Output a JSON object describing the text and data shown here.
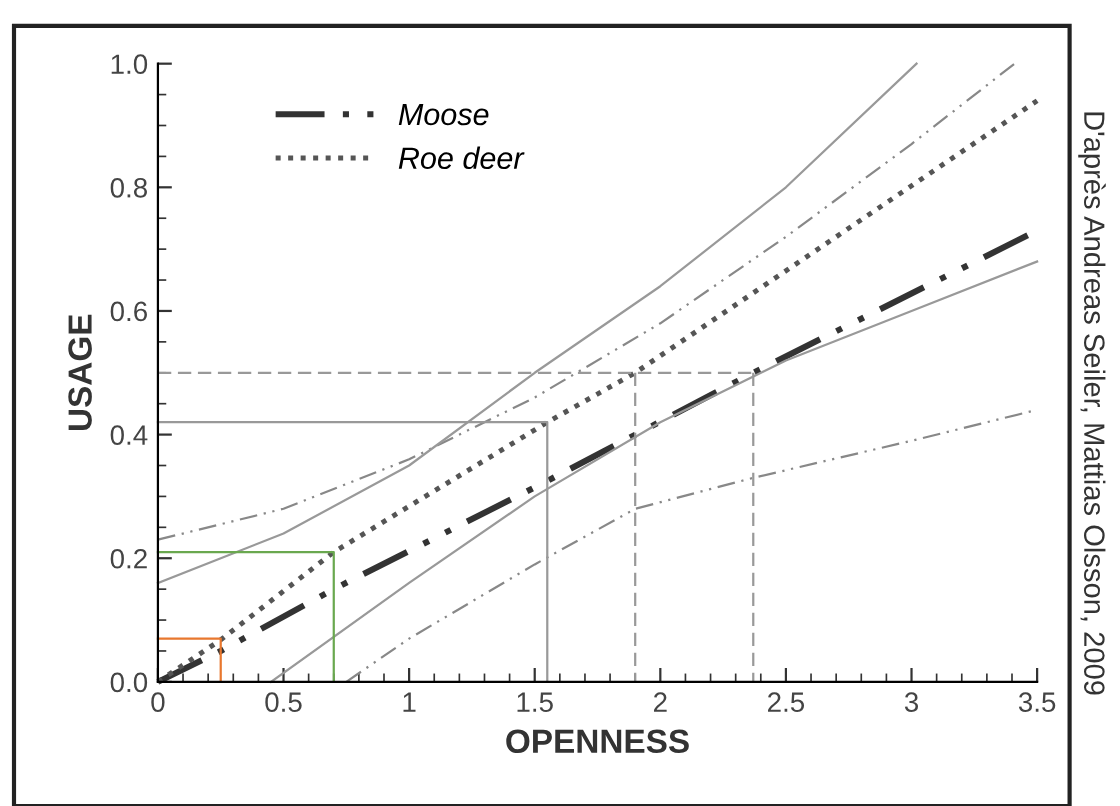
{
  "chart_data": {
    "type": "line",
    "xlabel": "OPENNESS",
    "ylabel": "USAGE",
    "xlim": [
      0,
      3.5
    ],
    "ylim": [
      0,
      1.0
    ],
    "xticks": [
      0,
      0.5,
      1,
      1.5,
      2,
      2.5,
      3,
      3.5
    ],
    "yticks": [
      {
        "value": 0,
        "label": "0.0"
      },
      {
        "value": 0.2,
        "label": "0.2"
      },
      {
        "value": 0.4,
        "label": "0.4"
      },
      {
        "value": 0.6,
        "label": "0.6"
      },
      {
        "value": 0.8,
        "label": "0.8"
      },
      {
        "value": 1.0,
        "label": "1.0"
      }
    ],
    "grid": false,
    "legend": "top left",
    "marker": "none",
    "series": [
      {
        "name": "Moose",
        "color": "#333333",
        "line_style": "dashdot",
        "x": [
          0,
          0.25,
          0.7,
          1.55,
          2.37,
          3.5
        ],
        "values": [
          0,
          0.05,
          0.15,
          0.325,
          0.5,
          0.73
        ]
      },
      {
        "name": "Roe deer",
        "color": "#555555",
        "line_style": "dotted",
        "x": [
          0,
          0.25,
          0.7,
          1.55,
          1.9,
          3.5
        ],
        "values": [
          0,
          0.068,
          0.21,
          0.42,
          0.5,
          0.94
        ]
      },
      {
        "color": "#888888",
        "line_style": "dashdot",
        "x": [
          0,
          0.5,
          1.0,
          1.5,
          2.0,
          2.5,
          3.0,
          3.41
        ],
        "values": [
          0.23,
          0.28,
          0.36,
          0.46,
          0.58,
          0.72,
          0.87,
          1.0
        ]
      },
      {
        "color": "#888888",
        "line_style": "dashdot",
        "x": [
          0.75,
          1.0,
          1.5,
          1.9,
          2.37,
          3.0,
          3.5
        ],
        "values": [
          0,
          0.07,
          0.19,
          0.28,
          0.33,
          0.39,
          0.44
        ]
      },
      {
        "color": "#999999",
        "line_style": "solid",
        "x": [
          0,
          0.5,
          1.0,
          1.5,
          2.0,
          2.5,
          3.02
        ],
        "values": [
          0.16,
          0.24,
          0.35,
          0.5,
          0.64,
          0.8,
          1.0
        ]
      },
      {
        "color": "#999999",
        "line_style": "solid",
        "x": [
          0.45,
          1.0,
          1.5,
          2.0,
          2.5,
          3.0,
          3.5
        ],
        "values": [
          0,
          0.16,
          0.3,
          0.42,
          0.52,
          0.6,
          0.68
        ]
      },
      {
        "color": "#e8772e",
        "line_style": "solid",
        "x": [
          0,
          0.25,
          0.25
        ],
        "values": [
          0.07,
          0.07,
          0
        ]
      },
      {
        "color": "#6aa84f",
        "line_style": "solid",
        "x": [
          0,
          0.7,
          0.7
        ],
        "values": [
          0.21,
          0.21,
          0
        ]
      },
      {
        "color": "#999999",
        "line_style": "solid",
        "x": [
          0,
          1.55,
          1.55
        ],
        "values": [
          0.42,
          0.42,
          0
        ]
      },
      {
        "color": "#999999",
        "line_style": "dashed",
        "x": [
          0,
          2.37
        ],
        "values": [
          0.5,
          0.5
        ]
      },
      {
        "color": "#999999",
        "line_style": "dashed",
        "x": [
          1.9,
          1.9
        ],
        "values": [
          0.5,
          0
        ]
      },
      {
        "color": "#999999",
        "line_style": "dashed",
        "x": [
          2.37,
          2.37
        ],
        "values": [
          0.5,
          0
        ]
      }
    ],
    "annotations": [
      "D'après Andreas Seiler, Mattias Olsson, 2009"
    ]
  }
}
